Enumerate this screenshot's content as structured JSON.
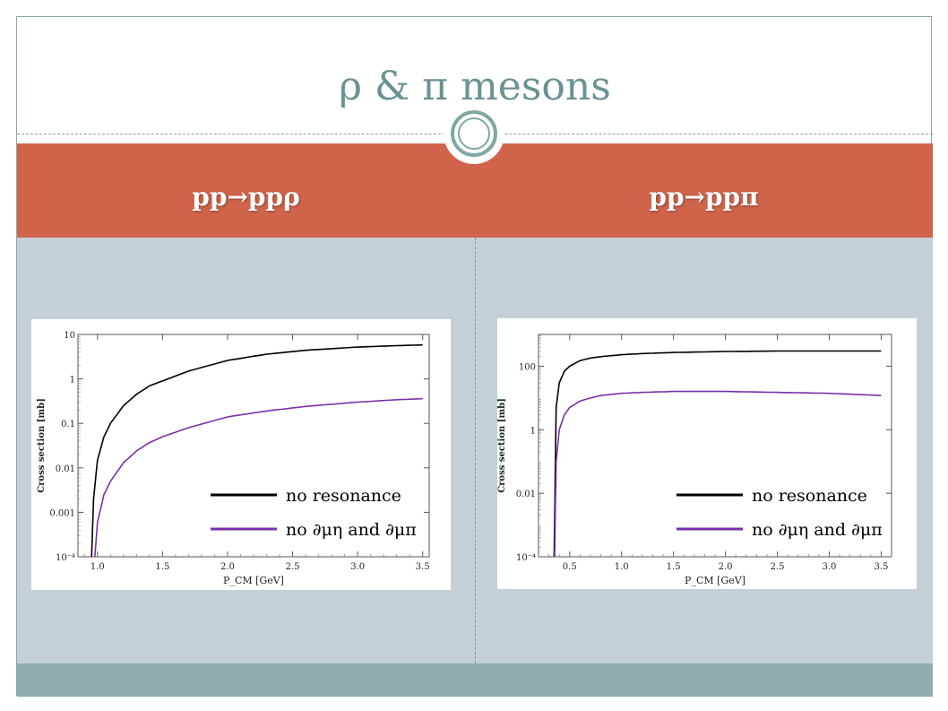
{
  "slide": {
    "title": "ρ & π mesons",
    "columns": [
      {
        "header": "pp→ppρ"
      },
      {
        "header": "pp→ppπ"
      }
    ]
  },
  "colors": {
    "header_band": "#cf644b",
    "content_band": "#c5d0d6",
    "footer_band": "#8fadad",
    "title": "#6a9295",
    "series_black": "#000000",
    "series_purple": "#7b2fa8"
  },
  "chart_data": [
    {
      "type": "line",
      "title": "",
      "xlabel": "P_CM [GeV]",
      "ylabel": "Cross section [mb]",
      "xlim": [
        0.85,
        3.55
      ],
      "ylim": [
        0.0001,
        10
      ],
      "yscale": "log",
      "xticks": [
        1.0,
        1.5,
        2.0,
        2.5,
        3.0,
        3.5
      ],
      "xtick_labels": [
        "1.0",
        "1.5",
        "2.0",
        "2.5",
        "3.0",
        "3.5"
      ],
      "yticks": [
        0.0001,
        0.001,
        0.01,
        0.1,
        1,
        10
      ],
      "ytick_labels": [
        "10⁻⁴",
        "0.001",
        "0.01",
        "0.1",
        "1",
        "10"
      ],
      "legend_position": "lower-right",
      "series": [
        {
          "name": "no resonance",
          "color": "#000000",
          "x": [
            0.955,
            0.97,
            1.0,
            1.05,
            1.1,
            1.2,
            1.3,
            1.4,
            1.5,
            1.7,
            2.0,
            2.3,
            2.6,
            3.0,
            3.3,
            3.5
          ],
          "y": [
            0.0001,
            0.002,
            0.015,
            0.05,
            0.1,
            0.25,
            0.45,
            0.7,
            0.9,
            1.5,
            2.6,
            3.6,
            4.4,
            5.2,
            5.6,
            5.8
          ]
        },
        {
          "name": "no ∂μη and ∂μπ",
          "color": "#7b2fa8",
          "x": [
            0.98,
            1.0,
            1.05,
            1.1,
            1.2,
            1.3,
            1.4,
            1.5,
            1.7,
            2.0,
            2.3,
            2.6,
            3.0,
            3.3,
            3.5
          ],
          "y": [
            0.0001,
            0.0006,
            0.0025,
            0.005,
            0.013,
            0.024,
            0.037,
            0.05,
            0.08,
            0.14,
            0.19,
            0.24,
            0.3,
            0.34,
            0.36
          ]
        }
      ]
    },
    {
      "type": "line",
      "title": "",
      "xlabel": "P_CM [GeV]",
      "ylabel": "Cross section [mb]",
      "xlim": [
        0.2,
        3.6
      ],
      "ylim": [
        0.0001,
        1000
      ],
      "yscale": "log",
      "xticks": [
        0.5,
        1.0,
        1.5,
        2.0,
        2.5,
        3.0,
        3.5
      ],
      "xtick_labels": [
        "0.5",
        "1.0",
        "1.5",
        "2.0",
        "2.5",
        "3.0",
        "3.5"
      ],
      "yticks": [
        0.0001,
        0.01,
        1,
        100
      ],
      "ytick_labels": [
        "10⁻⁴",
        "0.01",
        "1",
        "100"
      ],
      "legend_position": "lower-right",
      "series": [
        {
          "name": "no resonance",
          "color": "#000000",
          "x": [
            0.35,
            0.37,
            0.4,
            0.45,
            0.5,
            0.6,
            0.7,
            0.8,
            1.0,
            1.2,
            1.5,
            2.0,
            2.5,
            3.0,
            3.5
          ],
          "y": [
            0.0001,
            5,
            30,
            70,
            100,
            150,
            180,
            200,
            230,
            250,
            270,
            290,
            300,
            300,
            300
          ]
        },
        {
          "name": "no ∂μη and ∂μπ",
          "color": "#7b2fa8",
          "x": [
            0.355,
            0.37,
            0.4,
            0.45,
            0.5,
            0.6,
            0.7,
            0.8,
            1.0,
            1.2,
            1.5,
            2.0,
            2.5,
            3.0,
            3.5
          ],
          "y": [
            0.0001,
            0.1,
            1,
            3,
            5,
            8,
            10,
            12,
            14,
            15,
            16,
            16,
            15,
            14,
            12
          ]
        }
      ]
    }
  ]
}
